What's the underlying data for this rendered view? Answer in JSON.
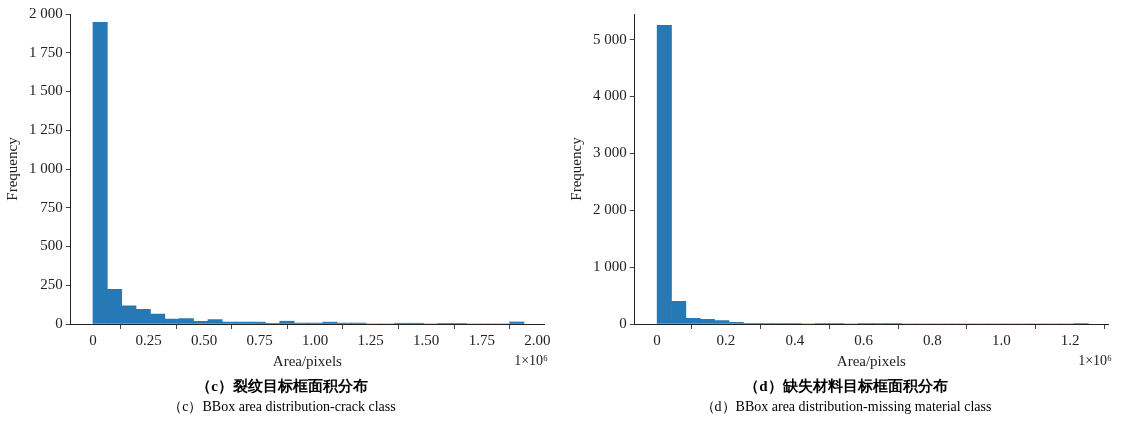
{
  "chart_data": [
    {
      "type": "histogram",
      "title": "（c）裂纹目标框面积分布",
      "subtitle": "（c）BBox area distribution-crack class",
      "xlabel": "Area/pixels",
      "ylabel": "Frequency",
      "color": "#2779b6",
      "bins": [
        0,
        0.0647,
        0.1293,
        0.194,
        0.2587,
        0.3233,
        0.388,
        0.4527,
        0.5173,
        0.582,
        0.6467,
        0.7113,
        0.776,
        0.8407,
        0.9053,
        0.97,
        1.0347,
        1.0993,
        1.164,
        1.2287,
        1.2933,
        1.358,
        1.4227,
        1.4873,
        1.552,
        1.6167,
        1.6813,
        1.746,
        1.8107,
        1.8753,
        1.94
      ],
      "values": [
        1946,
        223,
        118,
        95,
        64,
        31,
        35,
        17,
        29,
        12,
        12,
        12,
        4,
        18,
        6,
        6,
        12,
        6,
        6,
        0,
        0,
        5,
        5,
        0,
        4,
        4,
        0,
        0,
        0,
        13
      ],
      "xlim": [
        -0.1,
        2.03
      ],
      "xticks": [
        0,
        0.25,
        {
          "value": 0.5,
          "label": "0.50"
        },
        0.75,
        {
          "value": 1,
          "label": "1.00"
        },
        1.25,
        {
          "value": 1.5,
          "label": "1.50"
        },
        1.75,
        {
          "value": 2,
          "label": "2.00"
        }
      ],
      "ylim": [
        0,
        2000
      ],
      "yticks": [
        0,
        250,
        500,
        750,
        {
          "value": 1000,
          "label": "1 000"
        },
        {
          "value": 1250,
          "label": "1 250"
        },
        {
          "value": 1500,
          "label": "1 500"
        },
        {
          "value": 1750,
          "label": "1 750"
        },
        {
          "value": 2000,
          "label": "2 000"
        }
      ],
      "annotations": [
        "1×10⁶"
      ]
    },
    {
      "type": "histogram",
      "title": "（d）缺失材料目标框面积分布",
      "subtitle": "（d）BBox area distribution-missing material class",
      "xlabel": "Area/pixels",
      "ylabel": "Frequency",
      "color": "#2779b6",
      "bins": [
        0,
        0.0418,
        0.0835,
        0.1253,
        0.1671,
        0.2089,
        0.2506,
        0.2924,
        0.3342,
        0.3759,
        0.4177,
        0.4595,
        0.5012,
        0.543,
        0.5848,
        0.6266,
        0.6683,
        0.7101,
        0.7519,
        0.7936,
        0.8354,
        0.8772,
        0.9189,
        0.9607,
        1.0025,
        1.0443,
        1.086,
        1.1278,
        1.1696,
        1.2113,
        1.2531
      ],
      "values": [
        5250,
        400,
        100,
        80,
        60,
        30,
        10,
        10,
        10,
        10,
        0,
        10,
        10,
        0,
        10,
        10,
        10,
        0,
        0,
        0,
        0,
        0,
        0,
        0,
        0,
        0,
        0,
        0,
        0,
        10
      ],
      "xlim": [
        -0.065,
        1.31
      ],
      "xticks": [
        0,
        0.2,
        0.4,
        0.6,
        0.8,
        {
          "value": 1,
          "label": "1.0"
        },
        1.2
      ],
      "ylim": [
        0,
        5450
      ],
      "yticks": [
        0,
        {
          "value": 1000,
          "label": "1 000"
        },
        {
          "value": 2000,
          "label": "2 000"
        },
        {
          "value": 3000,
          "label": "3 000"
        },
        {
          "value": 4000,
          "label": "4 000"
        },
        {
          "value": 5000,
          "label": "5 000"
        }
      ],
      "annotations": [
        "1×10⁶"
      ]
    }
  ]
}
